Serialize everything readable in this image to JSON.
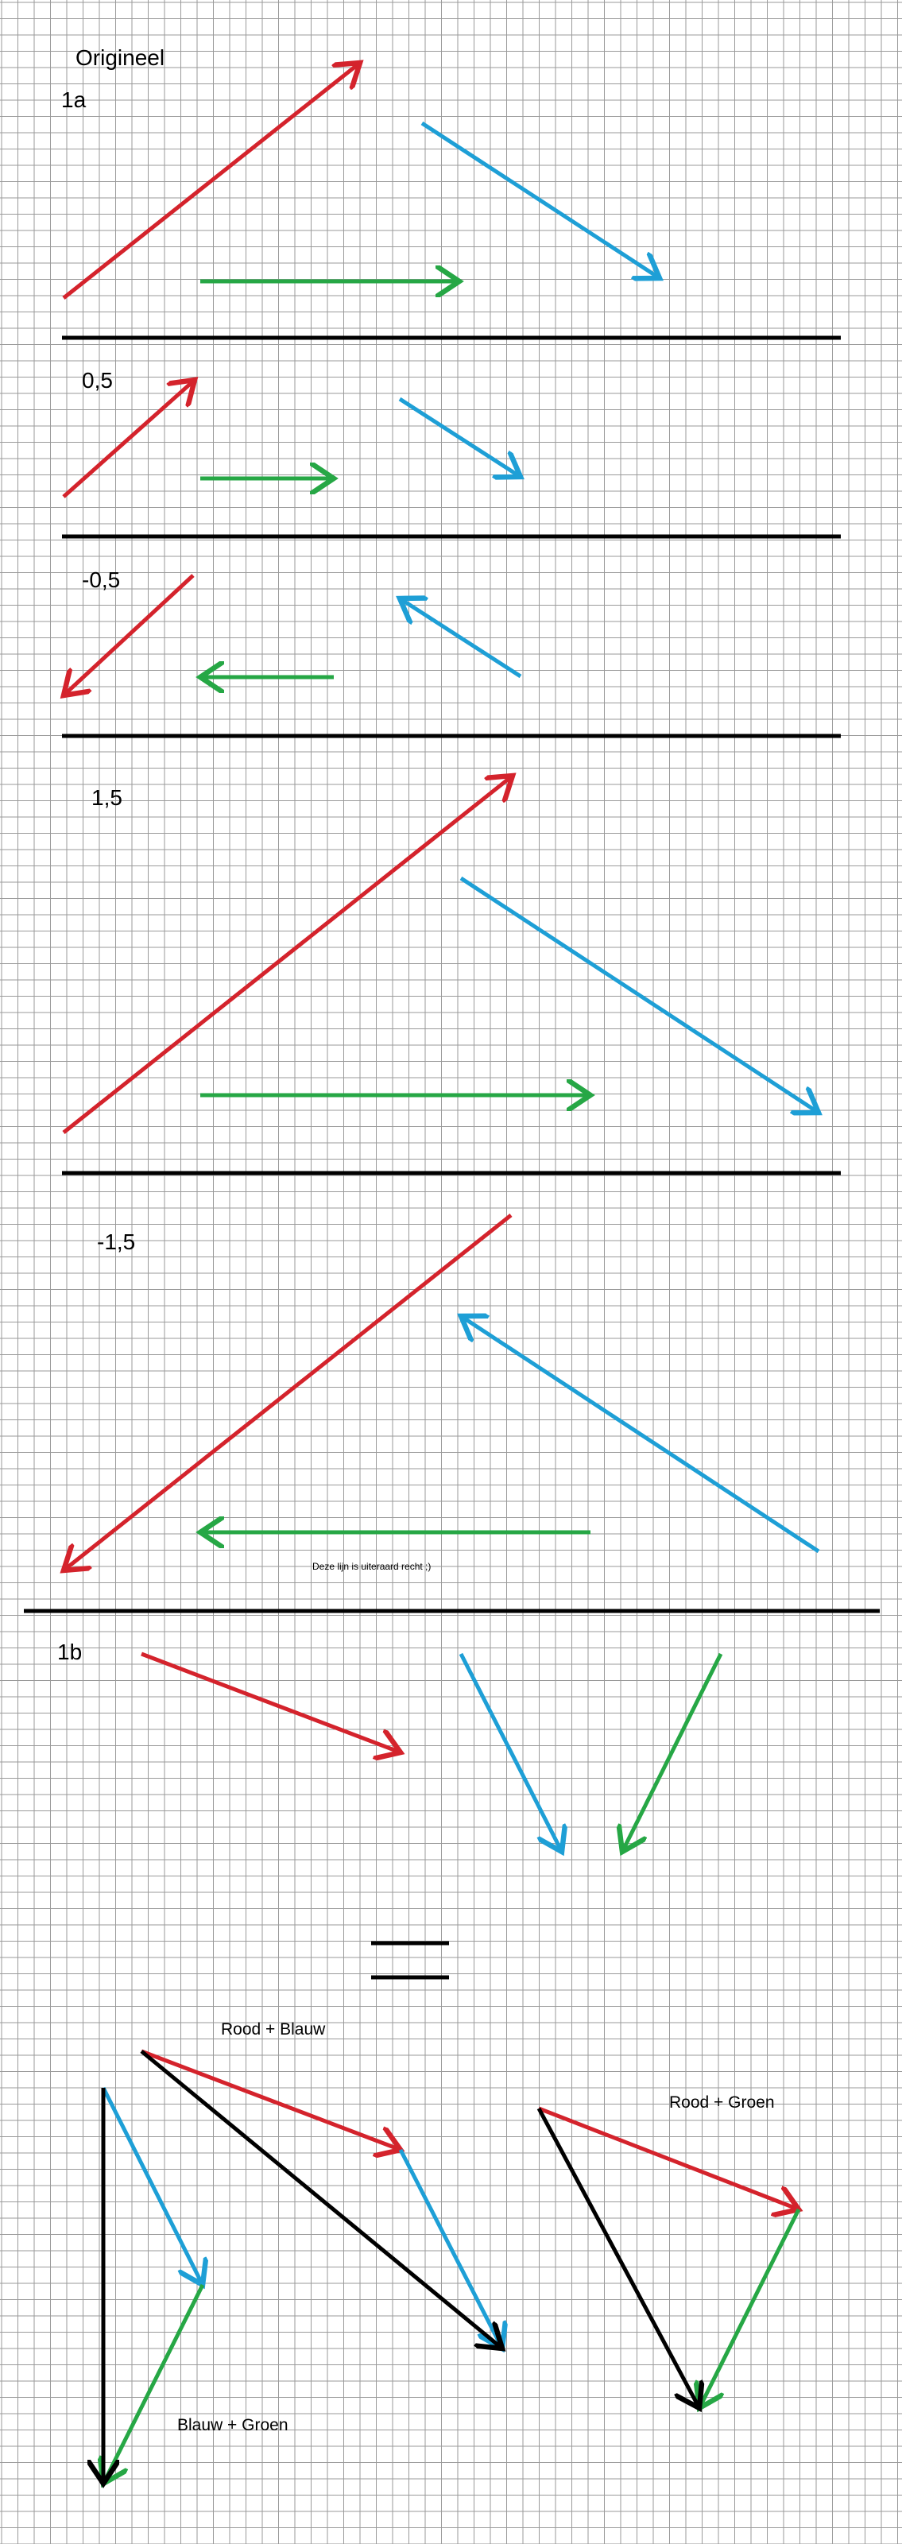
{
  "colors": {
    "grid": "#9a9a9a",
    "red": "#d4232c",
    "blue": "#1e9fd6",
    "green": "#26a745",
    "black": "#000000"
  },
  "labels": {
    "origineel": "Origineel",
    "part_1a": "1a",
    "scale_0_5": "0,5",
    "scale_neg_0_5": "-0,5",
    "scale_1_5": "1,5",
    "scale_neg_1_5": "-1,5",
    "note_straight": "Deze lijn is uiteraard recht ;)",
    "part_1b": "1b",
    "rood_blauw": "Rood + Blauw",
    "rood_groen": "Rood + Groen",
    "blauw_groen": "Blauw + Groen"
  }
}
